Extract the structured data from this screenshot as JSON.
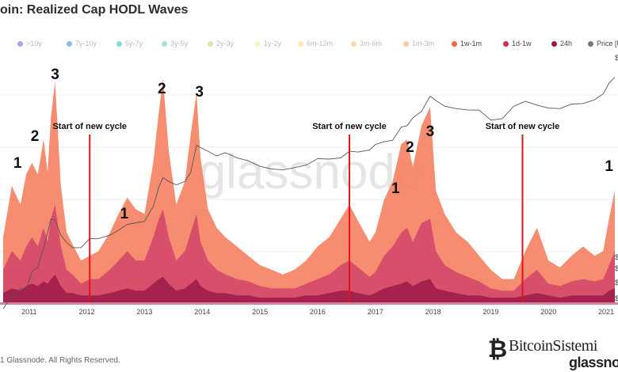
{
  "title": "oin: Realized Cap HODL Waves",
  "legend": [
    {
      "label": ">10y",
      "color": "#5b4fbf",
      "faded": true
    },
    {
      "label": "7y-10y",
      "color": "#2a74c9",
      "faded": true
    },
    {
      "label": "5y-7y",
      "color": "#20b0b0",
      "faded": true
    },
    {
      "label": "3y-5y",
      "color": "#58c47c",
      "faded": true
    },
    {
      "label": "2y-3y",
      "color": "#a6d65a",
      "faded": true
    },
    {
      "label": "1y-2y",
      "color": "#ecec7a",
      "faded": true
    },
    {
      "label": "6m-12m",
      "color": "#f6d35a",
      "faded": true
    },
    {
      "label": "3m-6m",
      "color": "#f7b35c",
      "faded": true
    },
    {
      "label": "1m-3m",
      "color": "#f59a4c",
      "faded": true
    },
    {
      "label": "1w-1m",
      "color": "#f26a3a",
      "faded": false
    },
    {
      "label": "1d-1w",
      "color": "#d62a4e",
      "faded": false
    },
    {
      "label": "24h",
      "color": "#a0163e",
      "faded": false
    },
    {
      "label": "Price [U",
      "color": "#777777",
      "faded": false
    }
  ],
  "chart_data": {
    "type": "area",
    "x_ticks": [
      "2011",
      "2012",
      "2013",
      "2014",
      "2015",
      "2016",
      "2017",
      "2018",
      "2019",
      "2020",
      "2021"
    ],
    "x": [
      2010.55,
      2010.7,
      2010.85,
      2010.95,
      2011.05,
      2011.15,
      2011.25,
      2011.32,
      2011.38,
      2011.45,
      2011.55,
      2011.65,
      2011.75,
      2011.9,
      2012.05,
      2012.2,
      2012.4,
      2012.55,
      2012.7,
      2012.85,
      2013.0,
      2013.15,
      2013.25,
      2013.32,
      2013.42,
      2013.55,
      2013.7,
      2013.8,
      2013.9,
      2013.97,
      2014.1,
      2014.25,
      2014.4,
      2014.6,
      2014.8,
      2015.0,
      2015.2,
      2015.4,
      2015.6,
      2015.8,
      2016.0,
      2016.2,
      2016.4,
      2016.55,
      2016.7,
      2016.9,
      2017.0,
      2017.15,
      2017.3,
      2017.45,
      2017.55,
      2017.65,
      2017.8,
      2017.95,
      2018.05,
      2018.2,
      2018.4,
      2018.6,
      2018.8,
      2019.0,
      2019.2,
      2019.4,
      2019.6,
      2019.8,
      2020.0,
      2020.2,
      2020.4,
      2020.6,
      2020.8,
      2020.95,
      2021.05,
      2021.15
    ],
    "series": [
      {
        "name": "1w-1m",
        "values": [
          28,
          50,
          42,
          55,
          60,
          55,
          70,
          56,
          80,
          95,
          50,
          30,
          25,
          18,
          20,
          22,
          30,
          38,
          45,
          40,
          38,
          60,
          82,
          96,
          65,
          42,
          52,
          72,
          90,
          62,
          40,
          32,
          28,
          24,
          20,
          16,
          14,
          12,
          14,
          18,
          24,
          28,
          36,
          42,
          35,
          26,
          30,
          44,
          52,
          68,
          70,
          58,
          76,
          84,
          48,
          38,
          30,
          26,
          20,
          14,
          10,
          10,
          22,
          32,
          18,
          15,
          20,
          24,
          20,
          22,
          36,
          48
        ]
      },
      {
        "name": "1d-1w",
        "values": [
          14,
          22,
          18,
          24,
          28,
          24,
          32,
          26,
          36,
          42,
          24,
          14,
          12,
          8,
          10,
          10,
          14,
          18,
          22,
          18,
          18,
          28,
          36,
          40,
          28,
          18,
          22,
          30,
          38,
          26,
          18,
          14,
          12,
          10,
          9,
          7,
          6,
          6,
          6,
          8,
          10,
          12,
          16,
          18,
          15,
          11,
          13,
          20,
          24,
          30,
          32,
          26,
          34,
          36,
          22,
          16,
          13,
          11,
          9,
          6,
          5,
          5,
          10,
          14,
          8,
          7,
          9,
          10,
          9,
          10,
          16,
          22
        ]
      },
      {
        "name": "24h",
        "values": [
          4,
          6,
          5,
          7,
          8,
          7,
          9,
          8,
          10,
          12,
          7,
          4,
          4,
          3,
          3,
          3,
          4,
          5,
          6,
          5,
          5,
          8,
          10,
          11,
          8,
          5,
          6,
          8,
          10,
          7,
          5,
          4,
          4,
          3,
          3,
          2,
          2,
          2,
          2,
          3,
          3,
          4,
          5,
          5,
          4,
          3,
          4,
          6,
          7,
          8,
          9,
          7,
          9,
          10,
          6,
          5,
          4,
          3,
          3,
          2,
          2,
          2,
          3,
          4,
          3,
          2,
          3,
          3,
          3,
          3,
          5,
          6
        ]
      },
      {
        "name": "Price [U",
        "values": [
          0.1,
          0.2,
          0.3,
          0.3,
          0.8,
          1.0,
          3.0,
          7.0,
          15.0,
          14.0,
          6.0,
          4.0,
          3.0,
          3.0,
          5.0,
          5.0,
          6.0,
          8.0,
          11.0,
          12.0,
          13.0,
          30.0,
          90.0,
          150.0,
          120.0,
          100.0,
          120.0,
          200.0,
          900.0,
          800.0,
          650.0,
          500.0,
          600.0,
          450.0,
          380.0,
          280.0,
          240.0,
          230.0,
          260.0,
          300.0,
          430.0,
          420.0,
          450.0,
          650.0,
          620.0,
          700.0,
          950.0,
          1100.0,
          1200.0,
          2500.0,
          2700.0,
          4200.0,
          6000.0,
          14000.0,
          11000.0,
          8000.0,
          7000.0,
          6500.0,
          6400.0,
          3700.0,
          4000.0,
          8000.0,
          10500.0,
          8500.0,
          7200.0,
          7000.0,
          9000.0,
          9300.0,
          11500.0,
          16000.0,
          29000.0,
          40000.0
        ]
      }
    ],
    "cycle_lines_x": [
      2012.05,
      2016.55,
      2019.55
    ],
    "cycle_labels": [
      {
        "text": "Start of new cycle",
        "x": 2012.05
      },
      {
        "text": "Start of new cycle",
        "x": 2016.55
      },
      {
        "text": "Start of new cycle",
        "x": 2019.55
      }
    ],
    "wave_labels": [
      {
        "text": "1",
        "x": 2010.8
      },
      {
        "text": "2",
        "x": 2011.1
      },
      {
        "text": "3",
        "x": 2011.45
      },
      {
        "text": "1",
        "x": 2012.65
      },
      {
        "text": "2",
        "x": 2013.3
      },
      {
        "text": "3",
        "x": 2013.95
      },
      {
        "text": "1",
        "x": 2017.35
      },
      {
        "text": "2",
        "x": 2017.6
      },
      {
        "text": "3",
        "x": 2017.95
      },
      {
        "text": "1",
        "x": 2021.05
      }
    ],
    "right_axis_fragments": [
      "$",
      "$",
      "$",
      "$",
      "$"
    ],
    "watermark": "glassnode",
    "ylim": [
      0,
      100
    ],
    "yscale_right": "log",
    "legend_position": "top"
  },
  "footer": "1 Glassnode. All Rights Reserved.",
  "brand": {
    "name": "BitcoinSistemi",
    "sub": "glassno"
  }
}
